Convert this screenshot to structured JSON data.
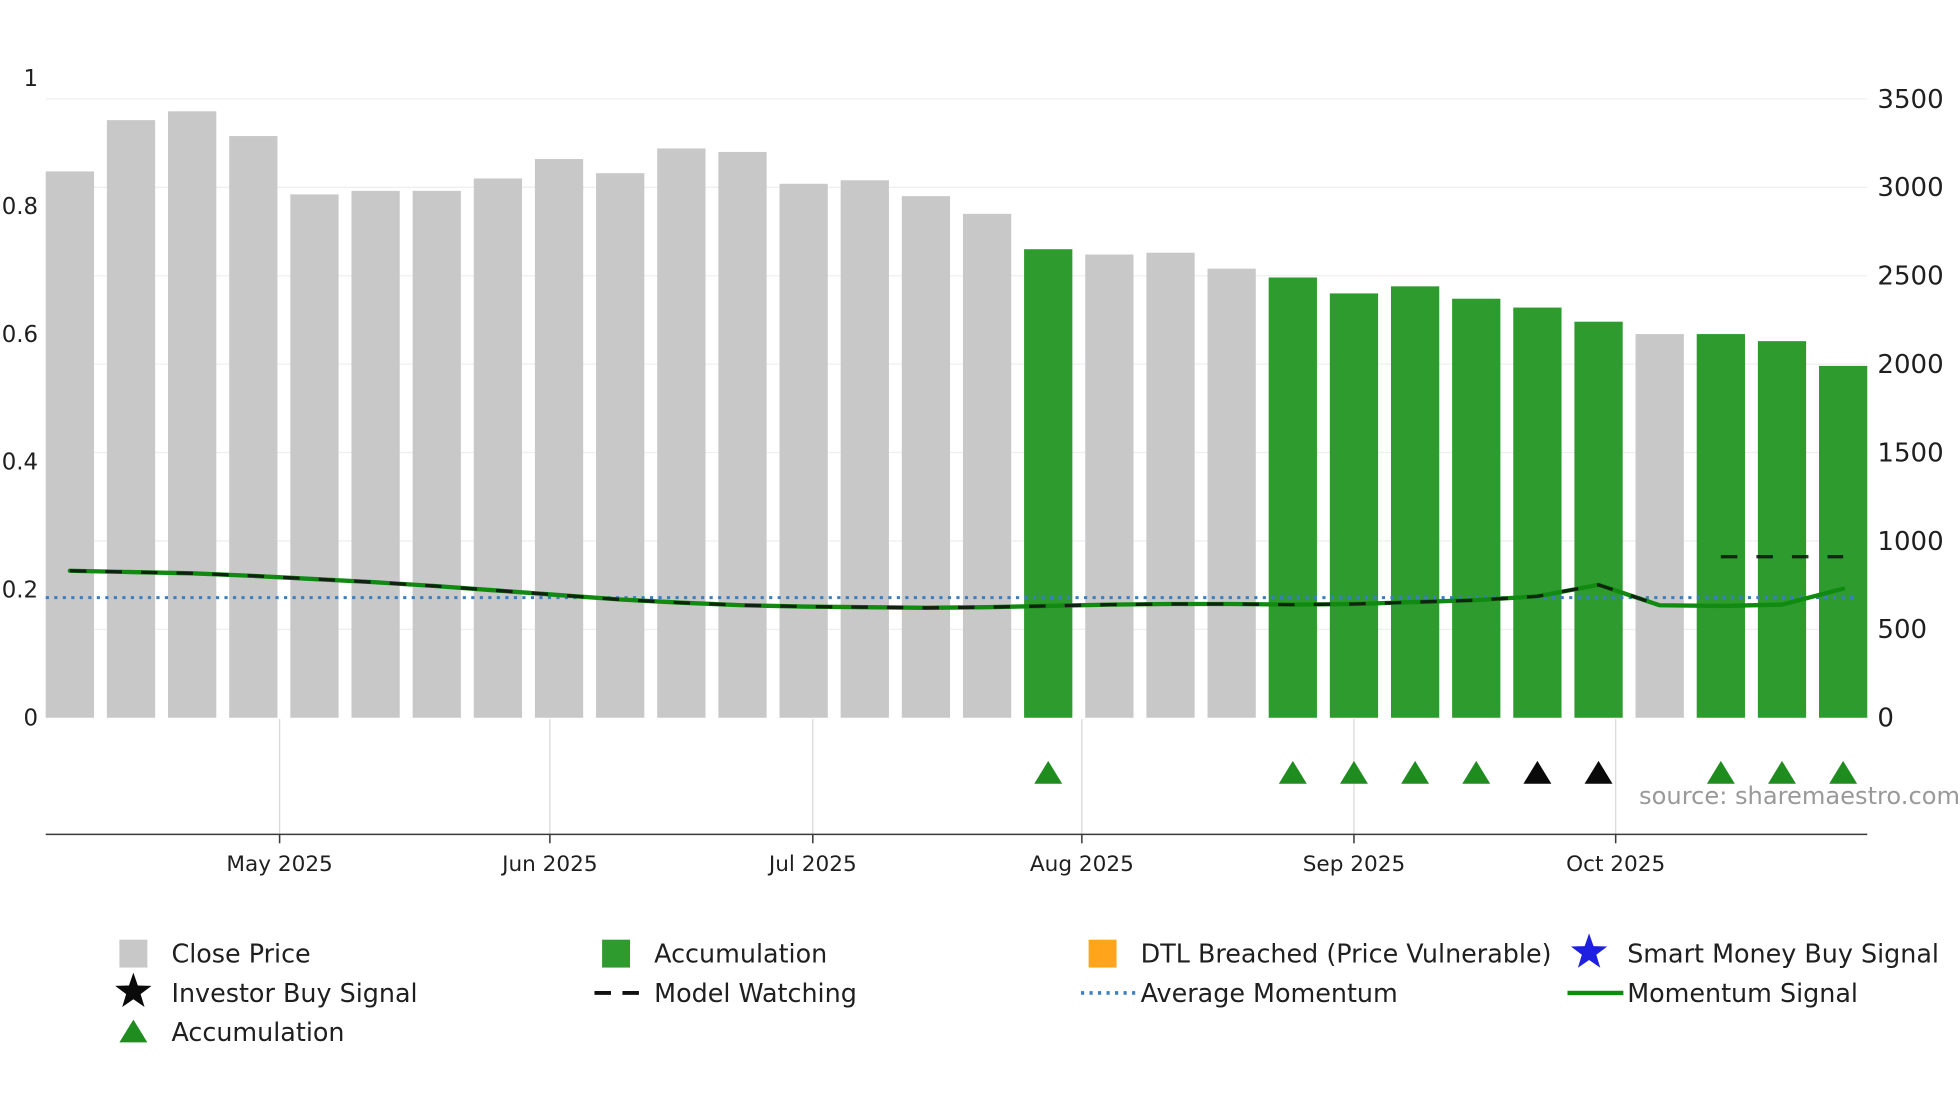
{
  "source_credit": "source: sharemaestro.com",
  "colors": {
    "bar_gray": "#c8c8c8",
    "bar_green": "#2e9b2e",
    "momentum_line": "#108a10",
    "model_watching": "#111111",
    "avg_momentum": "#3c7ebf",
    "dtl_orange": "#ffa41b",
    "smart_money_blue": "#1f1fdf",
    "investor_black": "#0a0a0a",
    "accum_marker_green": "#1f8c1f",
    "axis_text": "#1f1f1f",
    "tick_text": "#1f1f1f",
    "grid_line": "#efefef",
    "axis_line": "#3a3a3a",
    "source_text": "#999999"
  },
  "chart_data": {
    "type": "bar",
    "x_unit": "week",
    "bar_count": 30,
    "x_tick_labels": [
      "May 2025",
      "Jun 2025",
      "Jul 2025",
      "Aug 2025",
      "Sep 2025",
      "Oct 2025"
    ],
    "x_tick_positions": [
      3.43,
      7.85,
      12.15,
      16.55,
      21.0,
      25.28
    ],
    "left_axis": {
      "tick_values": [
        0,
        0.2,
        0.4,
        0.6,
        0.8,
        1
      ],
      "tick_labels": [
        "0",
        "0.2",
        "0.4",
        "0.6",
        "0.8",
        "1"
      ],
      "range": [
        0,
        1
      ]
    },
    "right_axis": {
      "tick_values": [
        0,
        500,
        1000,
        1500,
        2000,
        2500,
        3000,
        3500
      ],
      "tick_labels": [
        "0",
        "500",
        "1000",
        "1500",
        "2000",
        "2500",
        "3000",
        "3500"
      ],
      "range": [
        0,
        3500
      ]
    },
    "series": {
      "close_price_bars": {
        "name": "Close Price",
        "axis": "right",
        "values": [
          3090,
          3380,
          3430,
          3290,
          2960,
          2980,
          2980,
          3050,
          3160,
          3080,
          3220,
          3200,
          3020,
          3040,
          2950,
          2850,
          2650,
          2620,
          2630,
          2540,
          2490,
          2400,
          2440,
          2370,
          2320,
          2240,
          2170,
          2170,
          2130,
          1990
        ],
        "accumulation_indices": [
          16,
          20,
          21,
          22,
          23,
          24,
          25,
          27,
          28,
          29
        ]
      },
      "momentum_signal": {
        "name": "Momentum Signal",
        "axis": "left",
        "values": [
          0.23,
          0.228,
          0.226,
          0.222,
          0.217,
          0.212,
          0.206,
          0.199,
          0.192,
          0.185,
          0.18,
          0.176,
          0.174,
          0.173,
          0.172,
          0.173,
          0.175,
          0.177,
          0.178,
          0.178,
          0.177,
          0.178,
          0.181,
          0.184,
          0.19,
          0.208,
          0.176,
          0.175,
          0.177,
          0.202
        ]
      },
      "average_momentum": {
        "name": "Average Momentum",
        "axis": "left",
        "value": 0.188
      },
      "model_watching": {
        "name": "Model Watching",
        "axis": "left",
        "values": [
          0.23,
          0.228,
          0.226,
          0.222,
          0.217,
          0.212,
          0.206,
          0.199,
          0.192,
          0.185,
          0.18,
          0.176,
          0.174,
          0.173,
          0.172,
          0.173,
          0.175,
          0.177,
          0.178,
          0.178,
          0.177,
          0.178,
          0.181,
          0.184,
          0.19,
          0.208,
          0.176,
          0.252,
          0.252,
          0.252
        ]
      }
    },
    "markers": {
      "accumulation_triangle_indices": [
        16,
        20,
        21,
        22,
        23,
        27,
        28,
        29
      ],
      "investor_buy_triangle_indices": [
        24,
        25
      ]
    }
  },
  "legend": {
    "items": [
      {
        "label": "Close Price",
        "swatch": "square",
        "color_key": "bar_gray"
      },
      {
        "label": "Accumulation",
        "swatch": "square",
        "color_key": "bar_green"
      },
      {
        "label": "DTL Breached (Price Vulnerable)",
        "swatch": "square",
        "color_key": "dtl_orange"
      },
      {
        "label": "Smart Money Buy Signal",
        "swatch": "star",
        "color_key": "smart_money_blue"
      },
      {
        "label": "Investor Buy Signal",
        "swatch": "star",
        "color_key": "investor_black"
      },
      {
        "label": "Model Watching",
        "swatch": "dashed",
        "color_key": "model_watching"
      },
      {
        "label": "Average Momentum",
        "swatch": "dotted",
        "color_key": "avg_momentum"
      },
      {
        "label": "Momentum Signal",
        "swatch": "line",
        "color_key": "momentum_line"
      },
      {
        "label": "Accumulation",
        "swatch": "triangle",
        "color_key": "accum_marker_green"
      }
    ]
  }
}
